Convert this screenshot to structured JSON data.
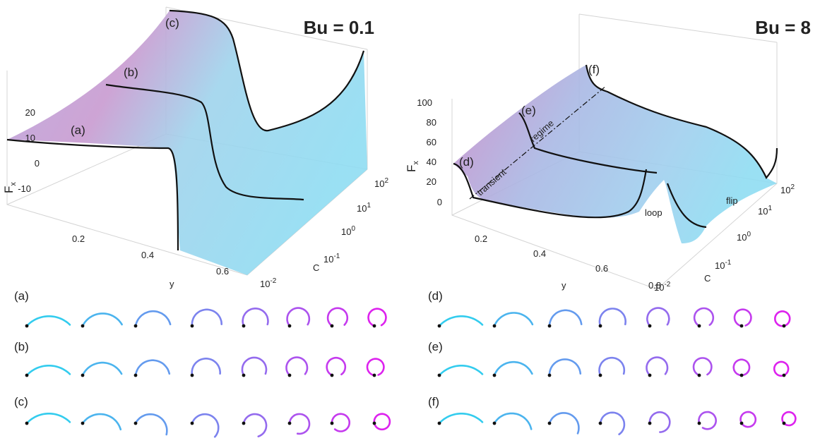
{
  "left": {
    "title": "Bu = 0.1",
    "fx_label": {
      "main": "F",
      "sub": "x"
    },
    "fx_ticks": [
      20,
      10,
      0,
      -10
    ],
    "y_ticks": [
      0.2,
      0.4,
      0.6
    ],
    "y_label": "y",
    "c_ticks": [
      {
        "base": "10",
        "exp": "2"
      },
      {
        "base": "10",
        "exp": "1"
      },
      {
        "base": "10",
        "exp": "0"
      },
      {
        "base": "10",
        "exp": "-1"
      },
      {
        "base": "10",
        "exp": "-2"
      }
    ],
    "c_label": "C",
    "curve_labels": [
      "(a)",
      "(b)",
      "(c)"
    ]
  },
  "right": {
    "title": "Bu = 8",
    "fx_label": {
      "main": "F",
      "sub": "x"
    },
    "fx_ticks": [
      100,
      80,
      60,
      40,
      20,
      0
    ],
    "y_ticks": [
      0.2,
      0.4,
      0.6,
      0.8
    ],
    "y_label": "y",
    "c_ticks": [
      {
        "base": "10",
        "exp": "2"
      },
      {
        "base": "10",
        "exp": "1"
      },
      {
        "base": "10",
        "exp": "0"
      },
      {
        "base": "10",
        "exp": "-1"
      },
      {
        "base": "10",
        "exp": "-2"
      }
    ],
    "c_label": "C",
    "curve_labels": [
      "(d)",
      "(e)",
      "(f)"
    ],
    "annotations": [
      "transient",
      "regime",
      "loop",
      "flip"
    ]
  },
  "rows": {
    "left": [
      "(a)",
      "(b)",
      "(c)"
    ],
    "right": [
      "(d)",
      "(e)",
      "(f)"
    ]
  }
}
